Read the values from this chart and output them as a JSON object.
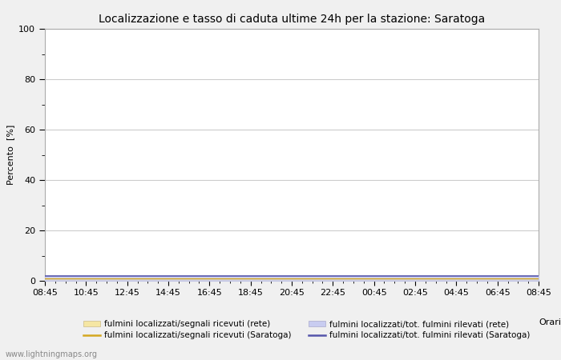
{
  "title": "Localizzazione e tasso di caduta ultime 24h per la stazione: Saratoga",
  "ylabel": "Percento  [%]",
  "xlabel": "Orario",
  "xlim_labels": [
    "08:45",
    "10:45",
    "12:45",
    "14:45",
    "16:45",
    "18:45",
    "20:45",
    "22:45",
    "00:45",
    "02:45",
    "04:45",
    "06:45",
    "08:45"
  ],
  "yticks": [
    0,
    20,
    40,
    60,
    80,
    100
  ],
  "yminor_ticks": [
    10,
    30,
    50,
    70,
    90
  ],
  "ylim": [
    0,
    100
  ],
  "fill_rete_color": "#f5e6a3",
  "fill_saratoga_color": "#c8ccf0",
  "line_rete_color": "#d4a820",
  "line_saratoga_color": "#5555aa",
  "legend_entries": [
    {
      "type": "fill",
      "color": "#f5e6a3",
      "edgecolor": "#ccbb88",
      "label": "fulmini localizzati/segnali ricevuti (rete)"
    },
    {
      "type": "fill",
      "color": "#c8ccf0",
      "edgecolor": "#aaaacc",
      "label": "fulmini localizzati/tot. fulmini rilevati (rete)"
    },
    {
      "type": "line",
      "color": "#d4a820",
      "label": "fulmini localizzati/segnali ricevuti (Saratoga)"
    },
    {
      "type": "line",
      "color": "#5555aa",
      "label": "fulmini localizzati/tot. fulmini rilevati (Saratoga)"
    }
  ],
  "watermark": "www.lightningmaps.org",
  "background_color": "#f0f0f0",
  "plot_bg_color": "#ffffff",
  "grid_color": "#cccccc",
  "fill_rete_value": 1.0,
  "fill_saratoga_value": 2.0,
  "title_fontsize": 10,
  "axis_fontsize": 8,
  "tick_fontsize": 8,
  "legend_fontsize": 7.5,
  "watermark_fontsize": 7
}
